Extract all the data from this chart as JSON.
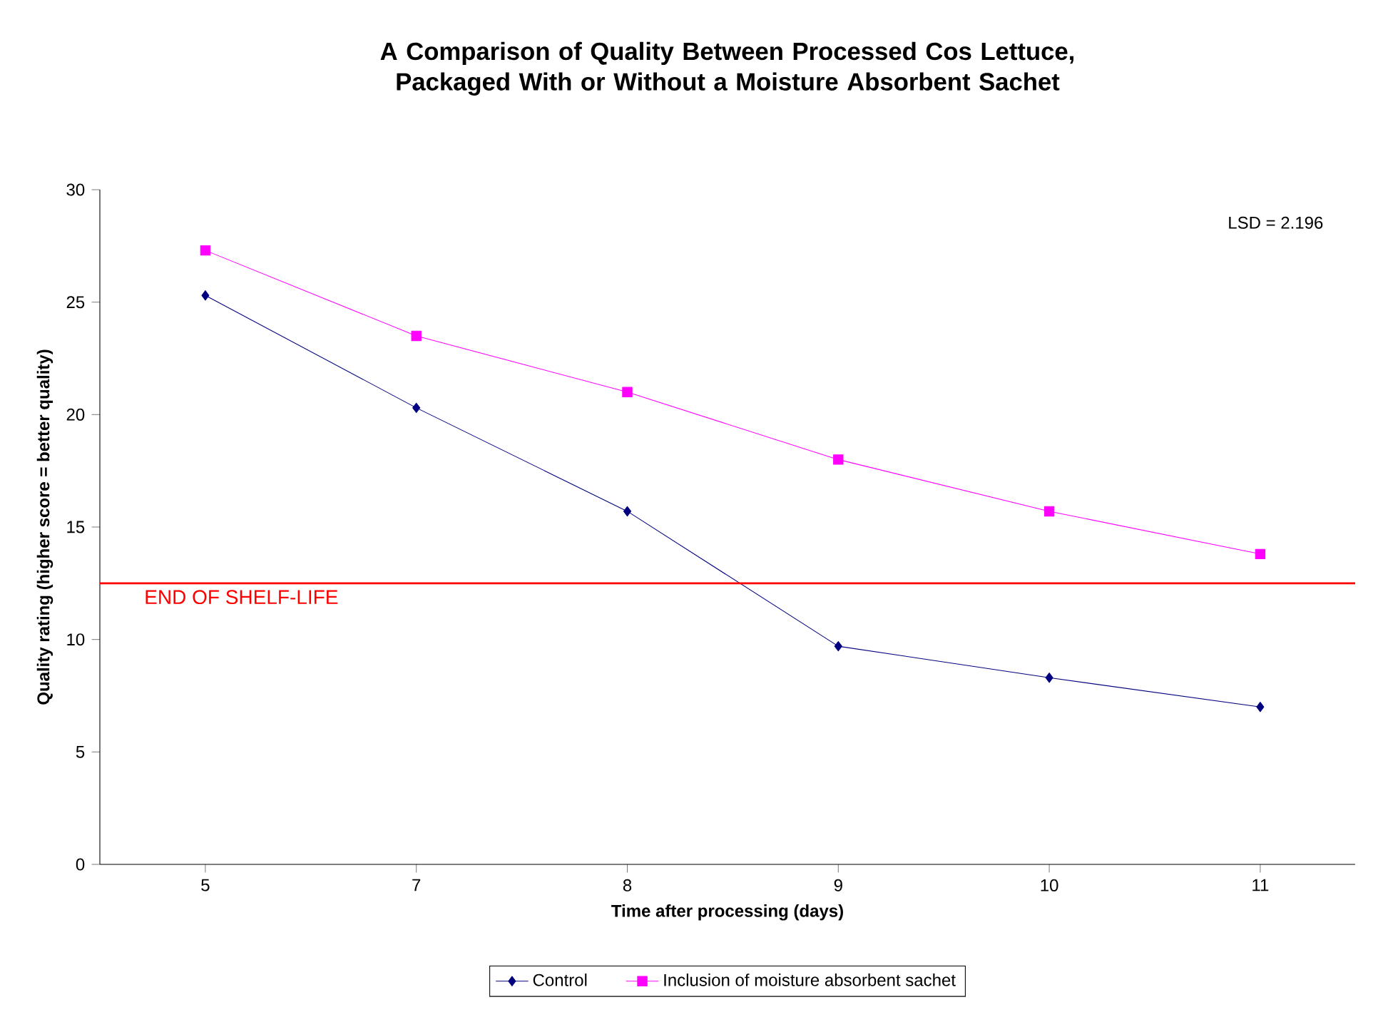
{
  "chart_data": {
    "type": "line",
    "title": "A Comparison of Quality Between Processed Cos Lettuce, Packaged With or Without a Moisture Absorbent Sachet",
    "xlabel": "Time after processing (days)",
    "ylabel": "Quality rating (higher score = better quality)",
    "categories": [
      "5",
      "7",
      "8",
      "9",
      "10",
      "11"
    ],
    "series": [
      {
        "name": "Control",
        "color": "#000080",
        "marker": "diamond",
        "values": [
          25.3,
          20.3,
          15.7,
          9.7,
          8.3,
          7.0
        ]
      },
      {
        "name": "Inclusion of moisture absorbent sachet",
        "color": "#ff00ff",
        "marker": "square",
        "values": [
          27.3,
          23.5,
          21.0,
          18.0,
          15.7,
          13.8
        ]
      }
    ],
    "ylim": [
      0,
      30
    ],
    "yticks": [
      0,
      5,
      10,
      15,
      20,
      25,
      30
    ],
    "grid": false,
    "legend": "bottom",
    "line_style": "solid",
    "ref_lines": [
      {
        "axis": "y",
        "value": 12.5,
        "label": "END OF SHELF-LIFE",
        "color": "#ff0000"
      }
    ],
    "annotations": [
      "LSD = 2.196"
    ]
  }
}
